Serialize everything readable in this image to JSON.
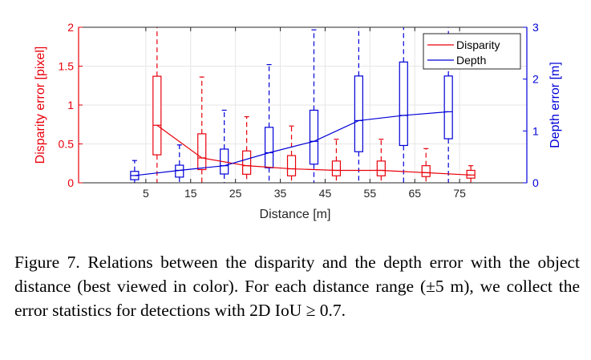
{
  "chart_data": {
    "type": "box",
    "xlabel": "Distance [m]",
    "ylabel_left": "Disparity error [pixel]",
    "ylabel_right": "Depth error [m]",
    "categories": [
      "5",
      "15",
      "25",
      "35",
      "45",
      "55",
      "65",
      "75"
    ],
    "x_values": [
      5,
      15,
      25,
      35,
      45,
      55,
      65,
      75
    ],
    "xlim": [
      -10,
      90
    ],
    "ylim_left": [
      0,
      2
    ],
    "ylim_right": [
      0,
      3
    ],
    "yticks_left": [
      "0",
      "0.5",
      "1",
      "1.5",
      "2"
    ],
    "yticks_right": [
      "0",
      "1",
      "2",
      "3"
    ],
    "grid": true,
    "legend": {
      "placement": "top-right",
      "entries": [
        "Disparity",
        "Depth"
      ]
    },
    "series": [
      {
        "name": "Disparity",
        "axis": "left",
        "color": "#e8000b",
        "mean": [
          0.74,
          0.32,
          0.22,
          0.18,
          0.16,
          0.16,
          0.13,
          0.1
        ],
        "boxes": [
          {
            "x": 5,
            "q1": 0.36,
            "median": 0.74,
            "q3": 1.37,
            "whisker_low": 0.0,
            "whisker_high": 2.0
          },
          {
            "x": 15,
            "q1": 0.17,
            "median": 0.32,
            "q3": 0.63,
            "whisker_low": 0.0,
            "whisker_high": 1.36
          },
          {
            "x": 25,
            "q1": 0.11,
            "median": 0.22,
            "q3": 0.41,
            "whisker_low": 0.0,
            "whisker_high": 0.85
          },
          {
            "x": 35,
            "q1": 0.09,
            "median": 0.18,
            "q3": 0.35,
            "whisker_low": 0.0,
            "whisker_high": 0.73
          },
          {
            "x": 45,
            "q1": 0.09,
            "median": 0.16,
            "q3": 0.28,
            "whisker_low": 0.0,
            "whisker_high": 0.56
          },
          {
            "x": 55,
            "q1": 0.09,
            "median": 0.16,
            "q3": 0.28,
            "whisker_low": 0.0,
            "whisker_high": 0.56
          },
          {
            "x": 65,
            "q1": 0.08,
            "median": 0.13,
            "q3": 0.22,
            "whisker_low": 0.0,
            "whisker_high": 0.44
          },
          {
            "x": 75,
            "q1": 0.06,
            "median": 0.1,
            "q3": 0.16,
            "whisker_low": 0.0,
            "whisker_high": 0.22
          }
        ]
      },
      {
        "name": "Depth",
        "axis": "right",
        "color": "#0000d8",
        "mean": [
          0.14,
          0.24,
          0.33,
          0.58,
          0.8,
          1.2,
          1.3,
          1.37
        ],
        "boxes": [
          {
            "x": 5,
            "q1": 0.06,
            "median": 0.14,
            "q3": 0.22,
            "whisker_low": 0.0,
            "whisker_high": 0.43
          },
          {
            "x": 15,
            "q1": 0.11,
            "median": 0.24,
            "q3": 0.34,
            "whisker_low": 0.0,
            "whisker_high": 0.73
          },
          {
            "x": 25,
            "q1": 0.17,
            "median": 0.33,
            "q3": 0.65,
            "whisker_low": 0.0,
            "whisker_high": 1.4
          },
          {
            "x": 35,
            "q1": 0.29,
            "median": 0.58,
            "q3": 1.07,
            "whisker_low": 0.0,
            "whisker_high": 2.28
          },
          {
            "x": 45,
            "q1": 0.36,
            "median": 0.8,
            "q3": 1.4,
            "whisker_low": 0.0,
            "whisker_high": 2.95
          },
          {
            "x": 55,
            "q1": 0.6,
            "median": 1.2,
            "q3": 2.06,
            "whisker_low": 0.0,
            "whisker_high": 3.0
          },
          {
            "x": 65,
            "q1": 0.72,
            "median": 1.3,
            "q3": 2.33,
            "whisker_low": 0.0,
            "whisker_high": 3.0
          },
          {
            "x": 75,
            "q1": 0.85,
            "median": 1.37,
            "q3": 2.06,
            "whisker_low": 0.0,
            "whisker_high": 3.0
          }
        ]
      }
    ]
  },
  "caption": "Figure 7. Relations between the disparity and the depth error with the object distance (best viewed in color). For each distance range (±5 m), we collect the error statistics for detections with 2D IoU ≥ 0.7."
}
